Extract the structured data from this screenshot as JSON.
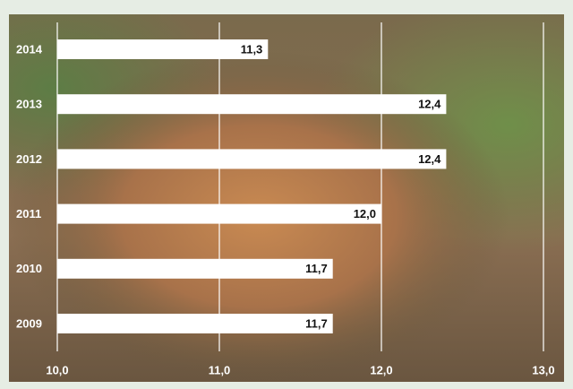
{
  "chart_data": {
    "type": "bar",
    "orientation": "horizontal",
    "categories": [
      "2014",
      "2013",
      "2012",
      "2011",
      "2010",
      "2009"
    ],
    "values": [
      11.3,
      12.4,
      12.4,
      12.0,
      11.7,
      11.7
    ],
    "value_labels": [
      "11,3",
      "12,4",
      "12,4",
      "12,0",
      "11,7",
      "11,7"
    ],
    "color": "#ffffff",
    "xlim": [
      10,
      13
    ],
    "xticks": [
      {
        "value": 10,
        "label": "10,0"
      },
      {
        "value": 11,
        "label": "11,0"
      },
      {
        "value": 12,
        "label": "12,0"
      },
      {
        "value": 13,
        "label": "13,0"
      }
    ],
    "grid": true
  }
}
